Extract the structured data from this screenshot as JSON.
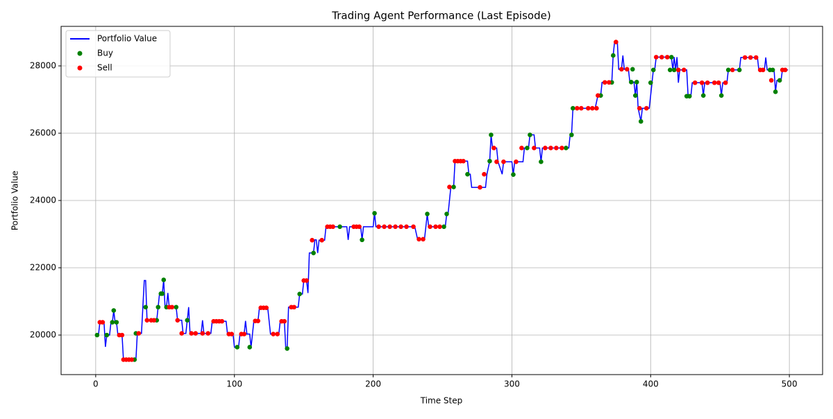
{
  "chart_data": {
    "type": "line",
    "title": "Trading Agent Performance (Last Episode)",
    "x_label": "Time Step",
    "y_label": "Portfolio Value",
    "xlim": [
      -24.95,
      523.95
    ],
    "xticks": [
      0,
      100,
      200,
      300,
      400,
      500
    ],
    "ylim": [
      18825,
      29175
    ],
    "yticks": [
      20000,
      22000,
      24000,
      26000,
      28000
    ],
    "grid": true,
    "legend": "upper left",
    "series": [
      {
        "name": "Portfolio Value",
        "type": "line",
        "color": "#0000ff",
        "x": [
          0,
          2,
          3,
          6,
          7,
          8,
          10,
          11,
          12,
          13,
          14,
          15,
          16,
          19,
          20,
          29,
          30,
          33,
          35,
          36,
          37,
          44,
          45,
          46,
          48,
          49,
          50,
          51,
          52,
          53,
          58,
          59,
          62,
          63,
          65,
          66,
          67,
          68,
          76,
          77,
          78,
          83,
          84,
          94,
          95,
          99,
          100,
          103,
          104,
          107,
          108,
          109,
          111,
          112,
          113,
          114,
          117,
          118,
          124,
          126,
          132,
          133,
          136,
          137,
          138,
          139,
          146,
          147,
          149,
          150,
          152,
          153,
          154,
          157,
          158,
          159,
          160,
          161,
          165,
          166,
          181,
          182,
          183,
          191,
          192,
          193,
          200,
          201,
          202,
          230,
          232,
          237,
          239,
          240,
          252,
          253,
          254,
          255,
          256,
          258,
          259,
          268,
          269,
          270,
          271,
          281,
          282,
          284,
          285,
          286,
          289,
          290,
          293,
          294,
          300,
          301,
          302,
          308,
          309,
          312,
          313,
          316,
          317,
          320,
          321,
          322,
          341,
          342,
          343,
          344,
          360,
          362,
          364,
          365,
          372,
          373,
          374,
          376,
          377,
          379,
          380,
          381,
          384,
          385,
          388,
          389,
          390,
          391,
          393,
          394,
          399,
          401,
          402,
          403,
          404,
          415,
          416,
          417,
          418,
          419,
          420,
          421,
          426,
          427,
          429,
          430,
          437,
          438,
          439,
          450,
          451,
          452,
          455,
          456,
          464,
          465,
          477,
          478,
          482,
          483,
          484,
          489,
          490,
          491,
          494,
          495,
          499
        ],
        "values": [
          20000,
          20000,
          20380,
          20380,
          19650,
          20000,
          20000,
          20380,
          20380,
          20730,
          20380,
          20380,
          20000,
          20000,
          19270,
          19270,
          20050,
          20050,
          21620,
          21620,
          20440,
          20440,
          20830,
          21230,
          21230,
          21640,
          20830,
          20830,
          21250,
          20830,
          20830,
          20440,
          20440,
          20050,
          20050,
          20440,
          20830,
          20050,
          20050,
          20440,
          20050,
          20050,
          20410,
          20410,
          20030,
          20030,
          19640,
          19640,
          20030,
          20030,
          20420,
          20030,
          20030,
          19640,
          20030,
          20420,
          20420,
          20810,
          20810,
          20030,
          20030,
          20410,
          20410,
          19600,
          19600,
          20830,
          20830,
          21220,
          21220,
          21620,
          21620,
          21250,
          22440,
          22440,
          22830,
          22830,
          22440,
          22820,
          22820,
          23220,
          23220,
          22830,
          23220,
          23220,
          22830,
          23220,
          23220,
          23620,
          23220,
          23220,
          22850,
          22850,
          23600,
          23220,
          23220,
          23600,
          23600,
          24000,
          24400,
          24400,
          25170,
          25170,
          24780,
          24780,
          24390,
          24390,
          24780,
          25170,
          25950,
          25560,
          25560,
          25150,
          24780,
          25150,
          25150,
          24770,
          25150,
          25150,
          25560,
          25560,
          25950,
          25950,
          25560,
          25560,
          25150,
          25560,
          25560,
          25950,
          25950,
          26740,
          26740,
          27120,
          27120,
          27510,
          27510,
          28310,
          28710,
          28710,
          27900,
          27900,
          28310,
          27900,
          27900,
          27520,
          27520,
          27120,
          27520,
          26740,
          26350,
          26740,
          26740,
          27500,
          27900,
          27900,
          28260,
          28260,
          27880,
          28260,
          27880,
          28260,
          27500,
          27880,
          27880,
          27100,
          27100,
          27500,
          27500,
          27120,
          27500,
          27500,
          27120,
          27500,
          27500,
          27880,
          27880,
          28250,
          28250,
          27880,
          27880,
          28250,
          27880,
          27880,
          27230,
          27570,
          27570,
          27880,
          27880
        ]
      },
      {
        "name": "Buy",
        "type": "scatter",
        "color": "#008000",
        "x": [
          1,
          8,
          12,
          13,
          15,
          28,
          29,
          36,
          44,
          45,
          47,
          48,
          49,
          51,
          58,
          66,
          102,
          111,
          138,
          147,
          157,
          176,
          192,
          201,
          239,
          251,
          253,
          258,
          268,
          284,
          285,
          301,
          311,
          313,
          321,
          339,
          343,
          344,
          364,
          372,
          373,
          386,
          387,
          389,
          390,
          393,
          400,
          402,
          414,
          415,
          417,
          426,
          428,
          438,
          451,
          456,
          464,
          486,
          488,
          490,
          493
        ],
        "values": [
          20000,
          20000,
          20380,
          20730,
          20380,
          19270,
          20050,
          20830,
          20440,
          20830,
          21230,
          21230,
          21640,
          20830,
          20830,
          20440,
          19640,
          19640,
          19600,
          21220,
          22440,
          23220,
          22830,
          23620,
          23600,
          23220,
          23600,
          24400,
          24780,
          25170,
          25950,
          24770,
          25560,
          25950,
          25150,
          25560,
          25950,
          26740,
          27120,
          27510,
          28310,
          27520,
          27900,
          27120,
          27520,
          26350,
          27500,
          27880,
          27880,
          28260,
          27880,
          27100,
          27100,
          27120,
          27120,
          27880,
          27880,
          27880,
          27880,
          27230,
          27570
        ]
      },
      {
        "name": "Sell",
        "type": "scatter",
        "color": "#ff0000",
        "x": [
          3,
          5,
          17,
          19,
          20,
          22,
          24,
          26,
          31,
          37,
          40,
          42,
          53,
          55,
          59,
          62,
          69,
          72,
          77,
          81,
          85,
          87,
          89,
          91,
          96,
          98,
          105,
          107,
          115,
          117,
          119,
          121,
          123,
          128,
          131,
          134,
          136,
          141,
          143,
          150,
          152,
          156,
          163,
          167,
          169,
          171,
          186,
          188,
          190,
          204,
          208,
          212,
          216,
          220,
          224,
          229,
          233,
          236,
          241,
          245,
          248,
          255,
          259,
          261,
          263,
          265,
          277,
          280,
          287,
          289,
          294,
          303,
          307,
          316,
          324,
          328,
          332,
          336,
          347,
          350,
          355,
          358,
          361,
          362,
          367,
          370,
          375,
          379,
          383,
          392,
          397,
          404,
          408,
          412,
          420,
          424,
          432,
          437,
          441,
          446,
          449,
          454,
          459,
          468,
          472,
          476,
          479,
          481,
          487,
          495,
          497
        ],
        "values": [
          20380,
          20380,
          20000,
          20000,
          19270,
          19270,
          19270,
          19270,
          20050,
          20440,
          20440,
          20440,
          20830,
          20830,
          20440,
          20050,
          20050,
          20050,
          20050,
          20050,
          20410,
          20410,
          20410,
          20410,
          20030,
          20030,
          20030,
          20030,
          20420,
          20420,
          20810,
          20810,
          20810,
          20030,
          20030,
          20410,
          20410,
          20830,
          20830,
          21620,
          21620,
          22820,
          22820,
          23220,
          23220,
          23220,
          23220,
          23220,
          23220,
          23220,
          23220,
          23220,
          23220,
          23220,
          23220,
          23220,
          22850,
          22850,
          23220,
          23220,
          23220,
          24400,
          25170,
          25170,
          25170,
          25170,
          24390,
          24780,
          25560,
          25150,
          25150,
          25150,
          25560,
          25560,
          25560,
          25560,
          25560,
          25560,
          26740,
          26740,
          26740,
          26740,
          26740,
          27120,
          27510,
          27510,
          28710,
          27900,
          27900,
          26740,
          26740,
          28260,
          28260,
          28260,
          27880,
          27880,
          27500,
          27500,
          27500,
          27500,
          27500,
          27500,
          27880,
          28250,
          28250,
          28250,
          27880,
          27880,
          27570,
          27880,
          27880
        ]
      }
    ]
  }
}
